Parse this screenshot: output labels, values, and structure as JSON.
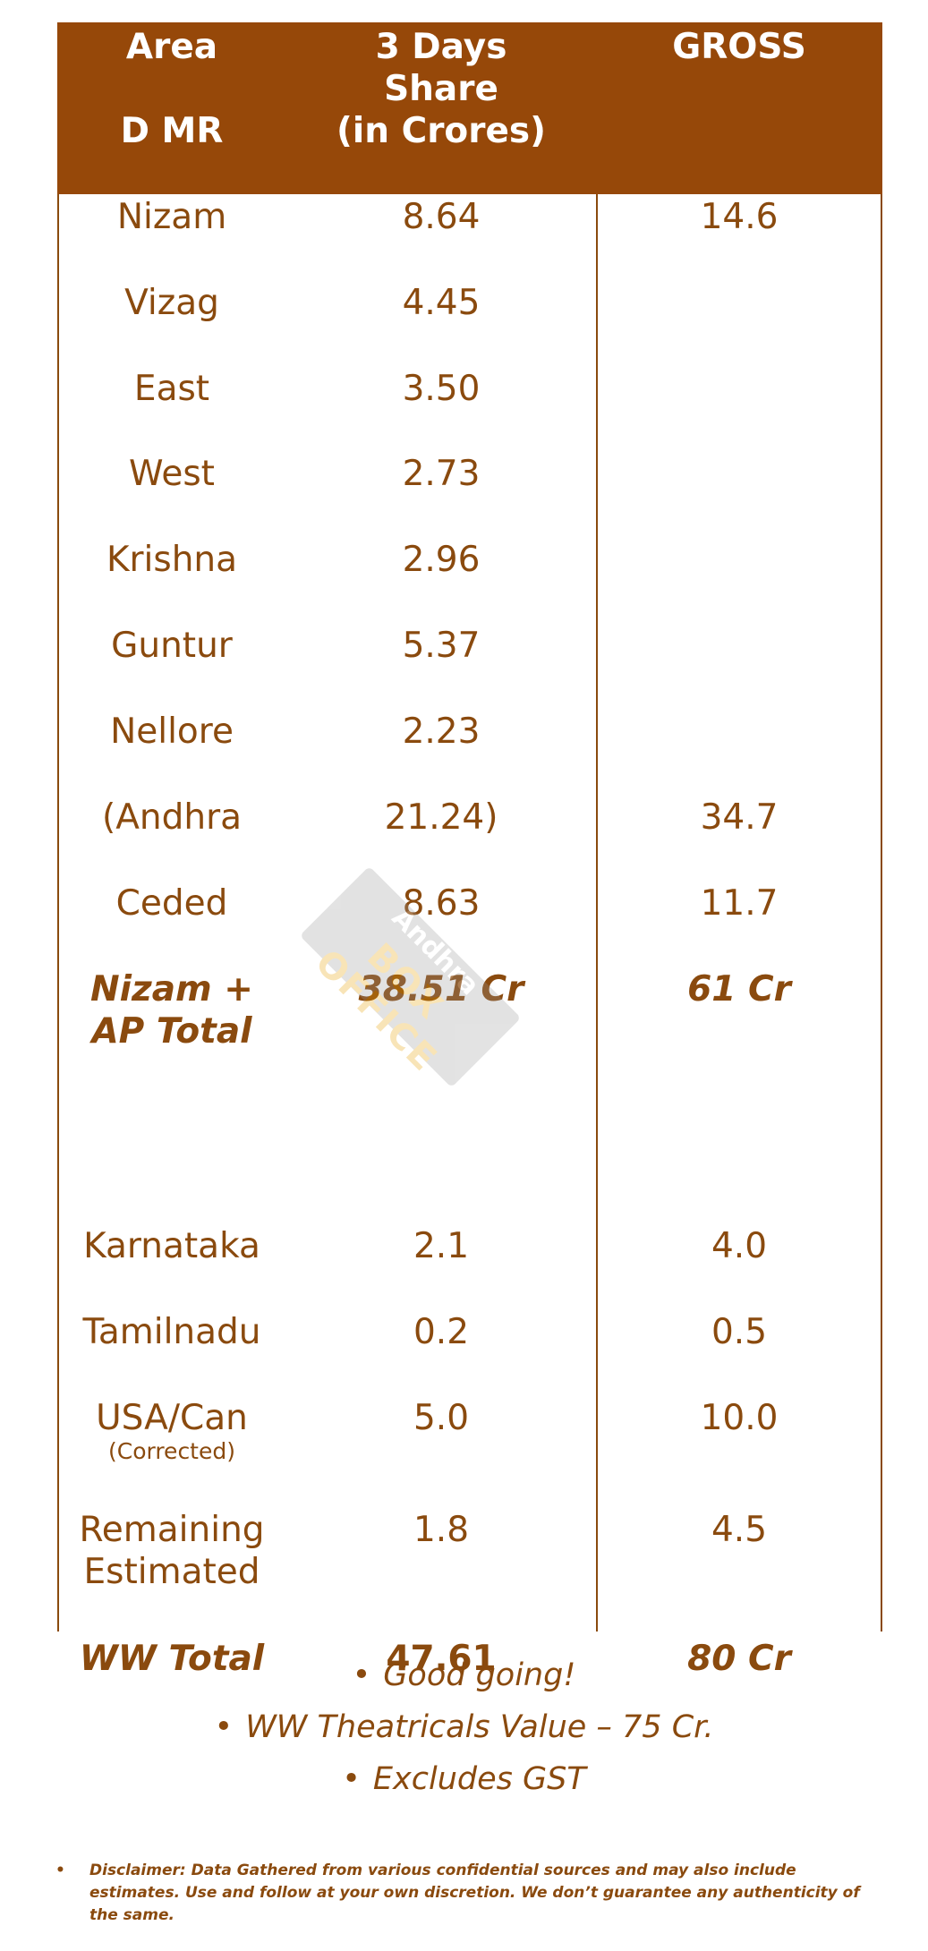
{
  "header": {
    "col1_line1": "Area",
    "col1_line2": "D MR",
    "col2_line1": "3 Days",
    "col2_line2": "Share",
    "col2_line3": "(in Crores)",
    "col3": "GROSS"
  },
  "rows": [
    {
      "area": "Nizam",
      "share": "8.64",
      "gross": "14.6"
    },
    {
      "area": "Vizag",
      "share": "4.45",
      "gross": ""
    },
    {
      "area": "East",
      "share": "3.50",
      "gross": ""
    },
    {
      "area": "West",
      "share": "2.73",
      "gross": ""
    },
    {
      "area": "Krishna",
      "share": "2.96",
      "gross": ""
    },
    {
      "area": "Guntur",
      "share": "5.37",
      "gross": ""
    },
    {
      "area": "Nellore",
      "share": "2.23",
      "gross": ""
    },
    {
      "area": "(Andhra",
      "share": "21.24)",
      "gross": "34.7"
    },
    {
      "area": "Ceded",
      "share": "8.63",
      "gross": "11.7"
    }
  ],
  "ap_total": {
    "area_line1": "Nizam +",
    "area_line2": "AP Total",
    "share": "38.51 Cr",
    "gross": "61 Cr"
  },
  "rows2": [
    {
      "area": "Karnataka",
      "share": "2.1",
      "gross": "4.0"
    },
    {
      "area": "Tamilnadu",
      "share": "0.2",
      "gross": "0.5"
    },
    {
      "area": "USA/Can",
      "note": "(Corrected)",
      "share": "5.0",
      "gross": "10.0"
    },
    {
      "area_line1": "Remaining",
      "area_line2": "Estimated",
      "share": "1.8",
      "gross": "4.5"
    }
  ],
  "ww_total": {
    "area": "WW Total",
    "share": "47.61",
    "gross": "80 Cr"
  },
  "watermark": {
    "line1": "Andhra",
    "line2": "BOX OFFICE"
  },
  "notes": [
    "Good going!",
    "WW Theatricals Value – 75 Cr.",
    "Excludes GST"
  ],
  "bullet": "•",
  "disclaimer": "Disclaimer: Data Gathered from various confidential sources and may also include estimates. Use and follow at your own discretion. We don’t guarantee any authenticity of the same.",
  "colors": {
    "header_bg": "#964809",
    "text": "#8a4a0e",
    "header_text": "#ffffff"
  }
}
